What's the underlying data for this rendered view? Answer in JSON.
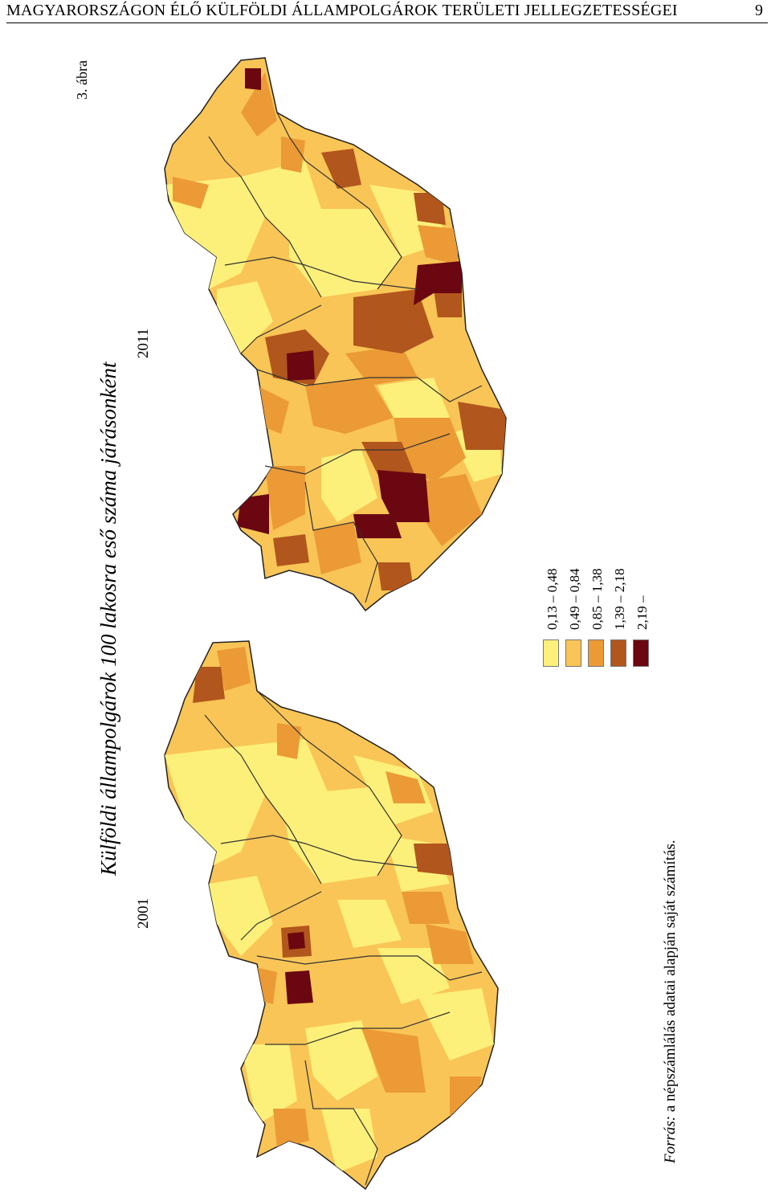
{
  "header": {
    "title": "MAGYARORSZÁGON ÉLŐ KÜLFÖLDI ÁLLAMPOLGÁROK TERÜLETI JELLEGZETESSÉGEI",
    "page_number": "9"
  },
  "figure": {
    "label": "3. ábra",
    "title": "Külföldi állampolgárok 100 lakosra eső száma járásonként",
    "source_label": "Forrás:",
    "source_text": " a népszámlálás adatai alapján saját számítás."
  },
  "maps": [
    {
      "year": "2011"
    },
    {
      "year": "2001"
    }
  ],
  "legend": {
    "items": [
      {
        "label": "0,13 – 0,48",
        "color": "#fdf07a"
      },
      {
        "label": "0,49 – 0,84",
        "color": "#f9c556"
      },
      {
        "label": "0,85 – 1,38",
        "color": "#eb9a36"
      },
      {
        "label": "1,39 – 2,18",
        "color": "#b1561c"
      },
      {
        "label": "2,19 –",
        "color": "#6b0710"
      }
    ]
  }
}
